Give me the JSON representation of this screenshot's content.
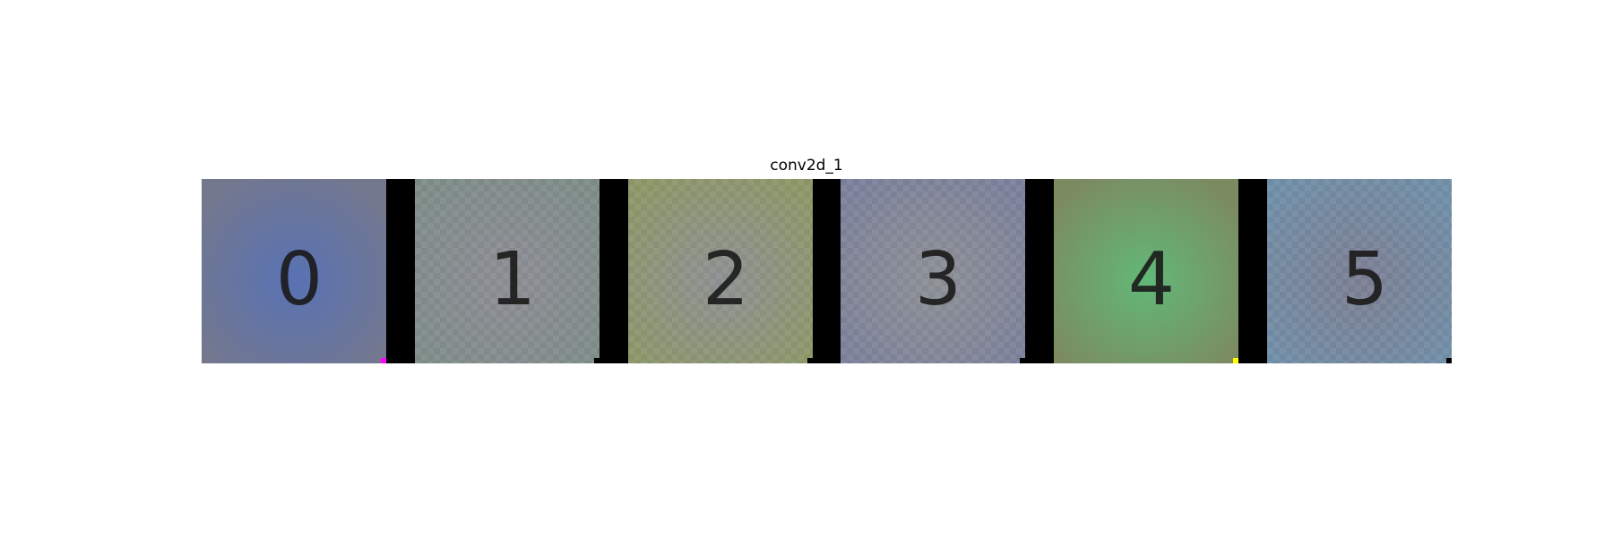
{
  "figure": {
    "title": "conv2d_1"
  },
  "tiles": [
    {
      "label": "0",
      "center_color": "#5872b4",
      "edge_color": "#74788e",
      "corner_marker_color": "#ff00ff",
      "checker": false
    },
    {
      "label": "1",
      "center_color": "#8a8a92",
      "edge_color": "#7c8a86",
      "corner_marker_color": "#000000",
      "checker": true
    },
    {
      "label": "2",
      "center_color": "#8a8e90",
      "edge_color": "#8a9466",
      "corner_marker_color": "#000000",
      "checker": true
    },
    {
      "label": "3",
      "center_color": "#8a8e92",
      "edge_color": "#7a7e98",
      "corner_marker_color": "#000000",
      "checker": true
    },
    {
      "label": "4",
      "center_color": "#62b878",
      "edge_color": "#7c8a62",
      "corner_marker_color": "#ffff00",
      "checker": false
    },
    {
      "label": "5",
      "center_color": "#7a7c90",
      "edge_color": "#6e8ca4",
      "corner_marker_color": "#000000",
      "checker": true
    }
  ]
}
